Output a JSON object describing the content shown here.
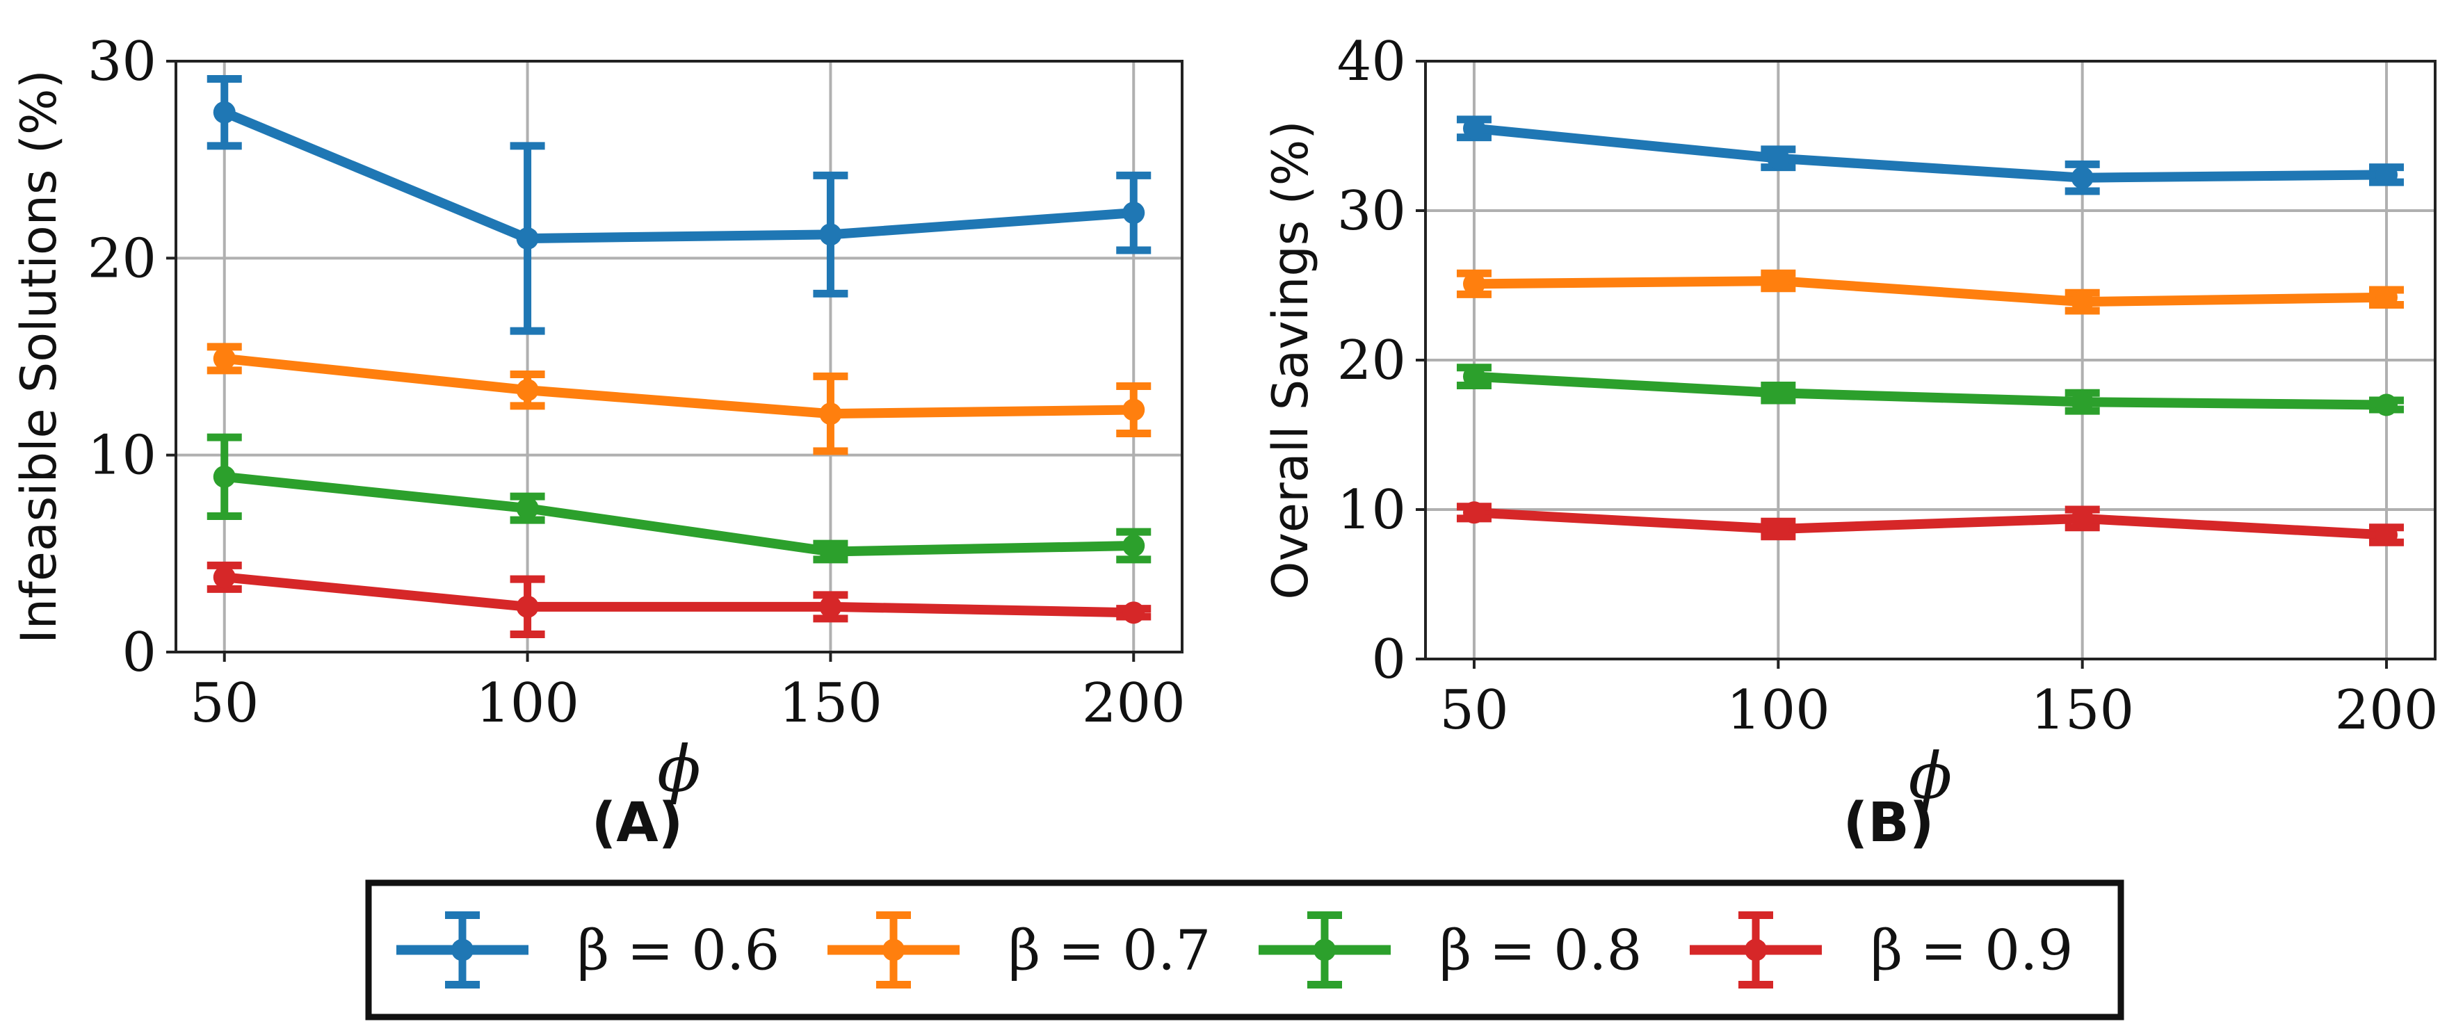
{
  "chart_data": [
    {
      "panel_label": "(A)",
      "type": "line",
      "xlabel": "ϕ",
      "ylabel": "Infeasible Solutions (%)",
      "x": [
        50,
        100,
        150,
        200
      ],
      "xlim": [
        42,
        208
      ],
      "ylim": [
        0,
        30
      ],
      "xticks": [
        "50",
        "100",
        "150",
        "200"
      ],
      "yticks": [
        "0",
        "10",
        "20",
        "30"
      ],
      "grid": true,
      "series": [
        {
          "name": "β = 0.6",
          "values": [
            27.4,
            21.0,
            21.2,
            22.3
          ],
          "errors": [
            1.7,
            4.7,
            3.0,
            1.9
          ]
        },
        {
          "name": "β = 0.7",
          "values": [
            14.9,
            13.3,
            12.1,
            12.3
          ],
          "errors": [
            0.6,
            0.8,
            1.9,
            1.2
          ]
        },
        {
          "name": "β = 0.8",
          "values": [
            8.9,
            7.3,
            5.1,
            5.4
          ],
          "errors": [
            2.0,
            0.6,
            0.4,
            0.7
          ]
        },
        {
          "name": "β = 0.9",
          "values": [
            3.8,
            2.3,
            2.3,
            2.0
          ],
          "errors": [
            0.6,
            1.4,
            0.6,
            0.2
          ]
        }
      ]
    },
    {
      "panel_label": "(B)",
      "type": "line",
      "xlabel": "ϕ",
      "ylabel": "Overall Savings (%)",
      "x": [
        50,
        100,
        150,
        200
      ],
      "xlim": [
        42,
        208
      ],
      "ylim": [
        0,
        40
      ],
      "xticks": [
        "50",
        "100",
        "150",
        "200"
      ],
      "yticks": [
        "0",
        "10",
        "20",
        "30",
        "40"
      ],
      "grid": true,
      "series": [
        {
          "name": "β = 0.6",
          "values": [
            35.5,
            33.5,
            32.2,
            32.4
          ],
          "errors": [
            0.6,
            0.6,
            0.9,
            0.5
          ]
        },
        {
          "name": "β = 0.7",
          "values": [
            25.1,
            25.3,
            23.9,
            24.2
          ],
          "errors": [
            0.7,
            0.5,
            0.6,
            0.5
          ]
        },
        {
          "name": "β = 0.8",
          "values": [
            18.9,
            17.8,
            17.2,
            17.0
          ],
          "errors": [
            0.6,
            0.5,
            0.6,
            0.3
          ]
        },
        {
          "name": "β = 0.9",
          "values": [
            9.8,
            8.7,
            9.4,
            8.3
          ],
          "errors": [
            0.4,
            0.5,
            0.6,
            0.5
          ]
        }
      ]
    }
  ],
  "legend": {
    "placement": "bottom-center",
    "entries": [
      "β = 0.6",
      "β = 0.7",
      "β = 0.8",
      "β = 0.9"
    ]
  },
  "colors": [
    "#1f77b4",
    "#ff7f0e",
    "#2ca02c",
    "#d62728"
  ]
}
